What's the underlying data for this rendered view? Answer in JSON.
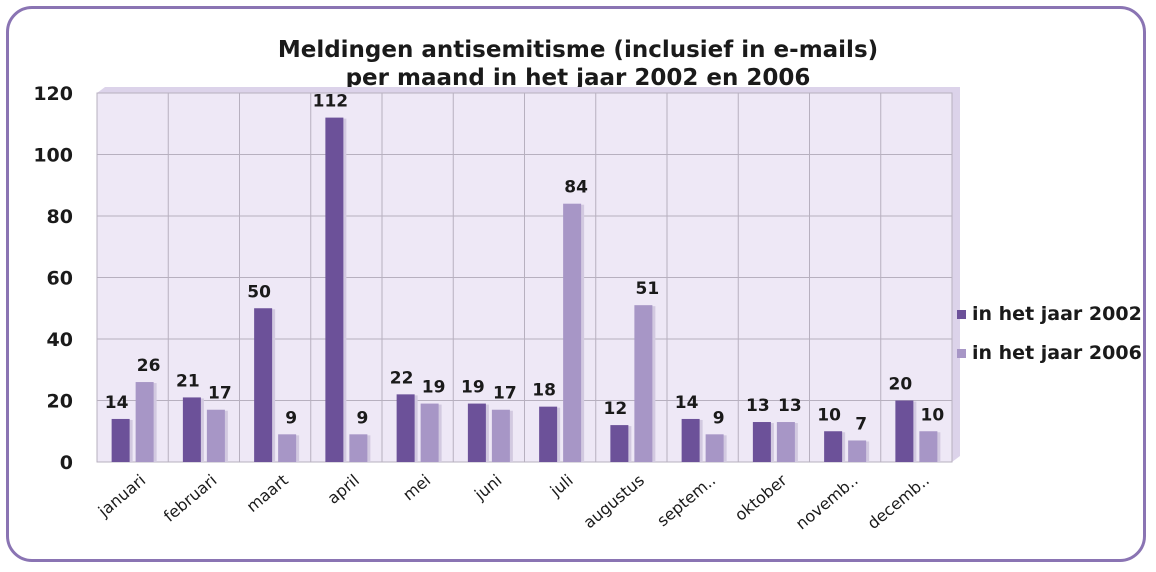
{
  "chart_data": {
    "type": "bar",
    "title_lines": [
      "Meldingen antisemitisme (inclusief in e-mails)",
      "per maand in het jaar 2002 en 2006"
    ],
    "categories": [
      "januari",
      "februari",
      "maart",
      "april",
      "mei",
      "juni",
      "juli",
      "augustus",
      "septem..",
      "oktober",
      "novemb..",
      "decemb.."
    ],
    "series": [
      {
        "name": "in het jaar 2002",
        "color": "#6c5199",
        "values": [
          14,
          21,
          50,
          112,
          22,
          19,
          18,
          12,
          14,
          13,
          10,
          20
        ]
      },
      {
        "name": "in het jaar 2006",
        "color": "#a796c6",
        "values": [
          26,
          17,
          9,
          9,
          19,
          17,
          84,
          51,
          9,
          13,
          7,
          10
        ]
      }
    ],
    "ylim": [
      0,
      120
    ],
    "yticks": [
      0,
      20,
      40,
      60,
      80,
      100,
      120
    ],
    "grid": true,
    "plot_background": "#eee8f6",
    "legend_position": "right"
  }
}
